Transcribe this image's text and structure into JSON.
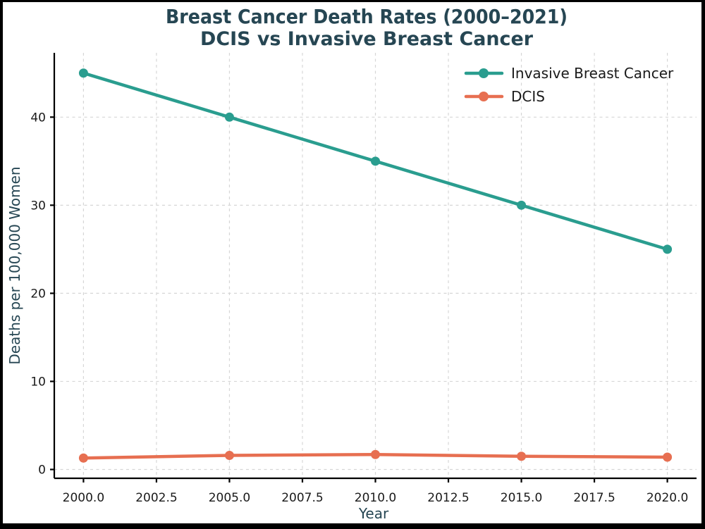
{
  "chart_data": {
    "type": "line",
    "title": "Breast Cancer Death Rates (2000–2021)",
    "subtitle": "DCIS vs Invasive Breast Cancer",
    "xlabel": "Year",
    "ylabel": "Deaths per 100,000 Women",
    "x": [
      2000,
      2005,
      2010,
      2015,
      2020
    ],
    "series": [
      {
        "name": "Invasive Breast Cancer",
        "color": "#2a9d8f",
        "values": [
          45,
          40,
          35,
          30,
          25
        ]
      },
      {
        "name": "DCIS",
        "color": "#e76f51",
        "values": [
          1.3,
          1.6,
          1.7,
          1.5,
          1.4
        ]
      }
    ],
    "x_ticks": {
      "values": [
        2000,
        2002.5,
        2005,
        2007.5,
        2010,
        2012.5,
        2015,
        2017.5,
        2020
      ],
      "labels": [
        "2000.0",
        "2002.5",
        "2005.0",
        "2007.5",
        "2010.0",
        "2012.5",
        "2015.0",
        "2017.5",
        "2020.0"
      ]
    },
    "y_ticks": {
      "values": [
        0,
        10,
        20,
        30,
        40
      ],
      "labels": [
        "0",
        "10",
        "20",
        "30",
        "40"
      ]
    },
    "xlim": [
      1999,
      2021
    ],
    "ylim": [
      -1,
      47.3
    ],
    "grid": {
      "show": true,
      "style": "dashed",
      "axes": "both"
    },
    "legend": {
      "position": "upper right",
      "frame": false
    },
    "title_color": "#264653",
    "axis_label_color": "#264653",
    "tick_label_color": "#1a1a1a",
    "grid_color": "#d6d6d6",
    "spine_color": "#000000",
    "background": "#ffffff",
    "border_color": "#000000"
  }
}
